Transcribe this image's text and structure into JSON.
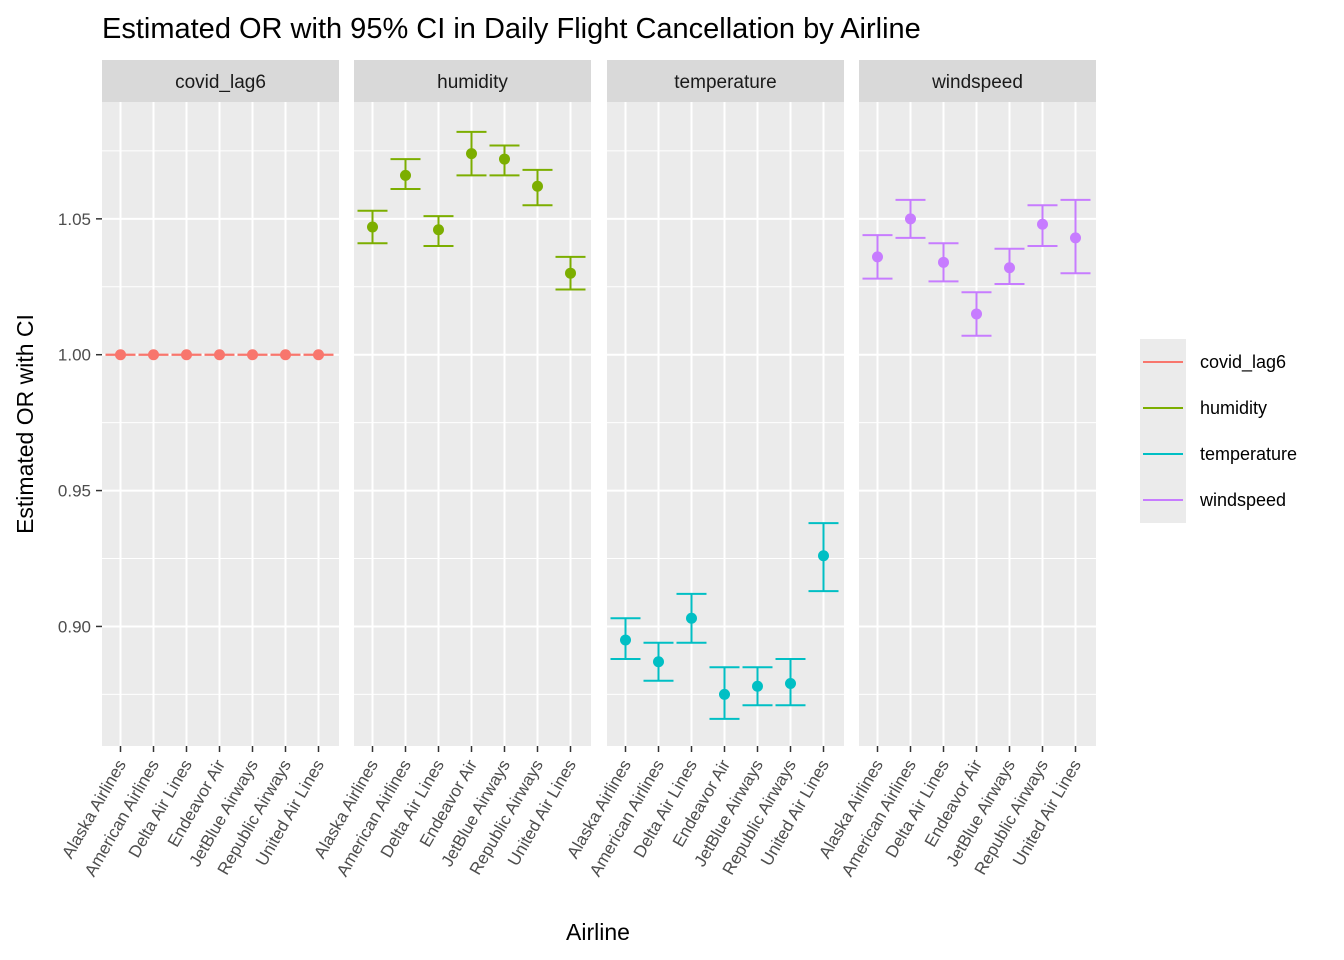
{
  "chart_data": {
    "type": "scatter",
    "title": "Estimated OR with 95% CI in Daily Flight Cancellation by Airline",
    "xlabel": "Airline",
    "ylabel": "Estimated OR with CI",
    "ylim": [
      0.856,
      1.093
    ],
    "y_ticks": [
      0.9,
      0.95,
      1.0,
      1.05
    ],
    "y_tick_labels": [
      "0.90",
      "0.95",
      "1.00",
      "1.05"
    ],
    "grid": true,
    "legend_position": "right",
    "categories": [
      "Alaska Airlines",
      "American Airlines",
      "Delta Air Lines",
      "Endeavor Air",
      "JetBlue Airways",
      "Republic Airways",
      "United Air Lines"
    ],
    "series": [
      {
        "name": "covid_lag6",
        "color": "#F8766D",
        "values": [
          1.0,
          1.0,
          1.0,
          1.0,
          1.0,
          1.0,
          1.0
        ],
        "lower": [
          1.0,
          1.0,
          1.0,
          1.0,
          1.0,
          1.0,
          1.0
        ],
        "upper": [
          1.0,
          1.0,
          1.0,
          1.0,
          1.0,
          1.0,
          1.0
        ]
      },
      {
        "name": "humidity",
        "color": "#7CAE00",
        "values": [
          1.047,
          1.066,
          1.046,
          1.074,
          1.072,
          1.062,
          1.03
        ],
        "lower": [
          1.041,
          1.061,
          1.04,
          1.066,
          1.066,
          1.055,
          1.024
        ],
        "upper": [
          1.053,
          1.072,
          1.051,
          1.082,
          1.077,
          1.068,
          1.036
        ]
      },
      {
        "name": "temperature",
        "color": "#00BFC4",
        "values": [
          0.895,
          0.887,
          0.903,
          0.875,
          0.878,
          0.879,
          0.926
        ],
        "lower": [
          0.888,
          0.88,
          0.894,
          0.866,
          0.871,
          0.871,
          0.913
        ],
        "upper": [
          0.903,
          0.894,
          0.912,
          0.885,
          0.885,
          0.888,
          0.938
        ]
      },
      {
        "name": "windspeed",
        "color": "#C77CFF",
        "values": [
          1.036,
          1.05,
          1.034,
          1.015,
          1.032,
          1.048,
          1.043
        ],
        "lower": [
          1.028,
          1.043,
          1.027,
          1.007,
          1.026,
          1.04,
          1.03
        ],
        "upper": [
          1.044,
          1.057,
          1.041,
          1.023,
          1.039,
          1.055,
          1.057
        ]
      }
    ]
  }
}
